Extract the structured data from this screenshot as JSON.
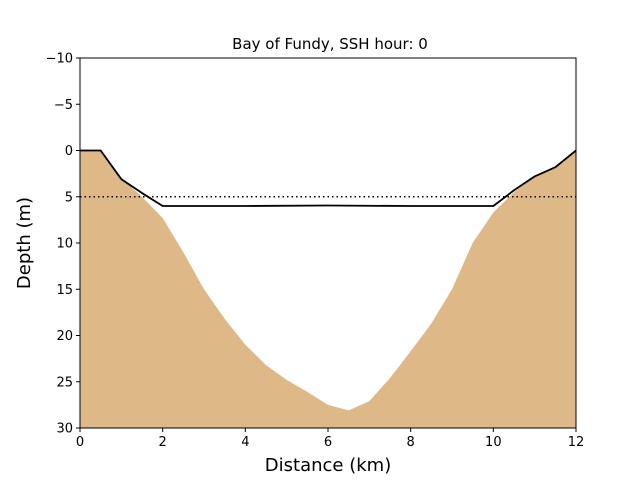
{
  "chart_data": {
    "type": "area",
    "title": "Bay of Fundy, SSH hour: 0",
    "xlabel": "Distance (km)",
    "ylabel": "Depth (m)",
    "xlim": [
      0,
      12
    ],
    "ylim": [
      -10,
      30
    ],
    "y_inverted": true,
    "grid": false,
    "xticks": [
      0,
      2,
      4,
      6,
      8,
      10,
      12
    ],
    "xtick_labels": [
      "0",
      "2",
      "4",
      "6",
      "8",
      "10",
      "12"
    ],
    "yticks": [
      -10,
      -5,
      0,
      5,
      10,
      15,
      20,
      25,
      30
    ],
    "ytick_labels": [
      "−10",
      "−5",
      "0",
      "5",
      "10",
      "15",
      "20",
      "25",
      "30"
    ],
    "colors": {
      "seabed_fill": "#deb887",
      "line": "#000000",
      "background": "#ffffff"
    },
    "series": [
      {
        "style": "filled-area",
        "x": [
          0,
          0.5,
          1,
          1.5,
          2,
          2.5,
          3,
          3.5,
          4,
          4.5,
          5,
          5.5,
          6,
          6.5,
          7,
          7.5,
          8,
          8.5,
          9,
          9.5,
          10,
          10.5,
          11,
          11.5,
          12
        ],
        "y": [
          0,
          0,
          3,
          5,
          7.3,
          11,
          15,
          18.2,
          21,
          23.2,
          24.8,
          26.1,
          27.5,
          28.1,
          27.1,
          24.6,
          21.7,
          18.7,
          15,
          10,
          6.7,
          4.5,
          2.8,
          1.8,
          0
        ]
      },
      {
        "style": "solid-line",
        "x": [
          0,
          0.5,
          1,
          1.5,
          2,
          4,
          6,
          8,
          10,
          10.5,
          11,
          11.5,
          12
        ],
        "y": [
          0,
          0,
          3.1,
          4.6,
          6.0,
          6.0,
          5.95,
          6.0,
          6.0,
          4.3,
          2.8,
          1.8,
          0
        ]
      },
      {
        "style": "dotted-line",
        "x": [
          0,
          12
        ],
        "y": [
          5,
          5
        ]
      }
    ]
  }
}
